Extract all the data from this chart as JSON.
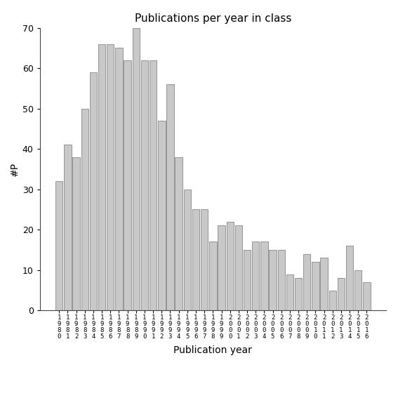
{
  "title": "Publications per year in class",
  "xlabel": "Publication year",
  "ylabel": "#P",
  "bar_color": "#c8c8c8",
  "bar_edgecolor": "#888888",
  "background_color": "#ffffff",
  "ylim": [
    0,
    70
  ],
  "yticks": [
    0,
    10,
    20,
    30,
    40,
    50,
    60,
    70
  ],
  "years": [
    "1980",
    "1981",
    "1982",
    "1983",
    "1984",
    "1985",
    "1986",
    "1987",
    "1988",
    "1989",
    "1990",
    "1991",
    "1992",
    "1993",
    "1994",
    "1995",
    "1996",
    "1997",
    "1998",
    "1999",
    "2000",
    "2001",
    "2002",
    "2003",
    "2004",
    "2005",
    "2006",
    "2007",
    "2008",
    "2009",
    "2010",
    "2011",
    "2012",
    "2013",
    "2014",
    "2015",
    "2016"
  ],
  "values": [
    32,
    41,
    38,
    50,
    59,
    66,
    66,
    65,
    62,
    70,
    62,
    62,
    47,
    56,
    38,
    30,
    25,
    25,
    17,
    21,
    22,
    21,
    15,
    17,
    17,
    15,
    15,
    9,
    8,
    14,
    12,
    13,
    5,
    8,
    16,
    10,
    7
  ]
}
